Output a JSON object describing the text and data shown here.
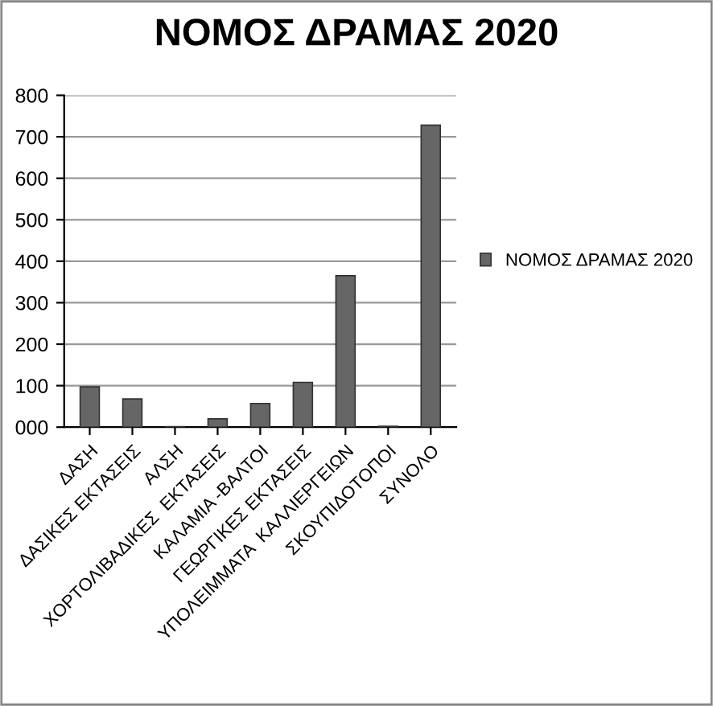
{
  "chart_data": {
    "type": "bar",
    "title": "ΝΟΜΟΣ ΔΡΑΜΑΣ 2020",
    "categories": [
      "ΔΑΣΗ",
      "ΔΑΣΙΚΕΣ ΕΚΤΑΣΕΙΣ",
      "ΑΛΣΗ",
      "ΧΟΡΤΟΛΙΒΑΔΙΚΕΣ  ΕΚΤΑΣΕΙΣ",
      "ΚΑΛΑΜΙΑ -ΒΑΛΤΟΙ",
      "ΓΕΩΡΓΙΚΕΣ ΕΚΤΑΣΕΙΣ",
      "ΥΠΟΛΕΙΜΜΑΤΑ  ΚΑΛΛΙΕΡΓΕΙΩΝ",
      "ΣΚΟΥΠΙΔΟΤΟΠΟΙ",
      "ΣΥΝΟΛΟ"
    ],
    "series": [
      {
        "name": "ΝΟΜΟΣ ΔΡΑΜΑΣ 2020",
        "color": "#666666",
        "values": [
          97,
          68,
          1,
          20,
          57,
          108,
          365,
          2,
          728
        ]
      }
    ],
    "ylim": [
      0,
      800
    ],
    "yticks": [
      {
        "value": 0,
        "label": "000"
      },
      100,
      200,
      300,
      400,
      500,
      600,
      700,
      800
    ],
    "grid": "y",
    "legend": "right"
  }
}
